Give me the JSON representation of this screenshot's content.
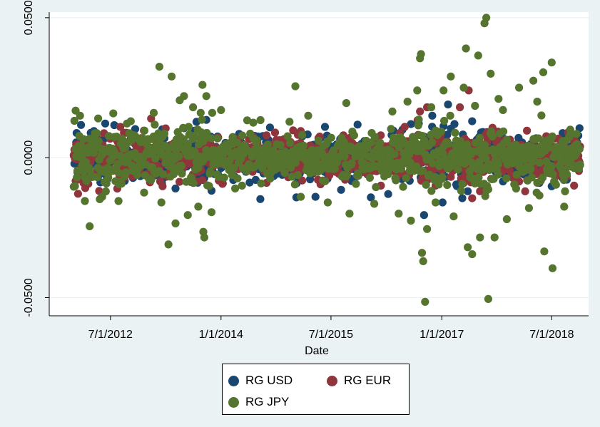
{
  "chart_data": {
    "type": "scatter",
    "xlabel": "Date",
    "ylabel": "",
    "x_range": [
      "2011-09-01",
      "2018-12-31"
    ],
    "ylim": [
      -0.0565,
      0.052
    ],
    "x_ticks": [
      {
        "date": "2012-07-01",
        "label": "7/1/2012"
      },
      {
        "date": "2014-01-01",
        "label": "1/1/2014"
      },
      {
        "date": "2015-07-01",
        "label": "7/1/2015"
      },
      {
        "date": "2017-01-01",
        "label": "1/1/2017"
      },
      {
        "date": "2018-07-01",
        "label": "7/1/2018"
      }
    ],
    "y_ticks": [
      {
        "value": 0.05,
        "label": "0.0500"
      },
      {
        "value": 0.0,
        "label": "0.0000"
      },
      {
        "value": -0.05,
        "label": "-0.0500"
      }
    ],
    "grid": "horizontal",
    "legend_position": "bottom-center",
    "series": [
      {
        "name": "RG USD",
        "color": "#1a476f",
        "points": [
          [
            "2012-01-15",
            0.0088
          ],
          [
            "2012-02-20",
            -0.0072
          ],
          [
            "2012-04-10",
            0.0095
          ],
          [
            "2012-06-05",
            0.0122
          ],
          [
            "2012-07-20",
            0.0116
          ],
          [
            "2012-09-10",
            -0.0083
          ],
          [
            "2012-11-01",
            0.0102
          ],
          [
            "2013-03-15",
            0.0101
          ],
          [
            "2013-05-20",
            -0.011
          ],
          [
            "2013-07-01",
            0.0105
          ],
          [
            "2013-09-01",
            0.0128
          ],
          [
            "2013-10-20",
            0.0135
          ],
          [
            "2013-11-15",
            -0.0118
          ],
          [
            "2014-01-10",
            -0.0092
          ],
          [
            "2014-04-01",
            0.0085
          ],
          [
            "2014-07-15",
            -0.0148
          ],
          [
            "2014-09-01",
            0.0108
          ],
          [
            "2015-01-10",
            -0.0142
          ],
          [
            "2015-04-15",
            -0.014
          ],
          [
            "2015-06-01",
            0.011
          ],
          [
            "2015-08-20",
            -0.0115
          ],
          [
            "2015-11-10",
            0.0118
          ],
          [
            "2016-01-15",
            -0.0142
          ],
          [
            "2016-04-10",
            -0.013
          ],
          [
            "2016-06-20",
            0.01
          ],
          [
            "2016-08-01",
            0.012
          ],
          [
            "2016-10-05",
            -0.0205
          ],
          [
            "2016-11-15",
            0.015
          ],
          [
            "2017-01-05",
            -0.016
          ],
          [
            "2017-02-01",
            0.019
          ],
          [
            "2017-05-10",
            -0.012
          ],
          [
            "2017-06-01",
            0.013
          ],
          [
            "2017-07-15",
            0.009
          ],
          [
            "2017-11-01",
            -0.0085
          ],
          [
            "2018-05-01",
            -0.009
          ],
          [
            "2018-09-01",
            0.008
          ]
        ]
      },
      {
        "name": "RG EUR",
        "color": "#90353b",
        "points": [
          [
            "2012-03-01",
            0.006
          ],
          [
            "2012-08-15",
            -0.0065
          ],
          [
            "2012-12-01",
            0.007
          ],
          [
            "2013-03-05",
            -0.0085
          ],
          [
            "2013-06-10",
            0.0075
          ],
          [
            "2013-10-01",
            -0.008
          ],
          [
            "2014-03-01",
            0.007
          ],
          [
            "2014-08-15",
            -0.009
          ],
          [
            "2015-02-01",
            0.0095
          ],
          [
            "2015-05-10",
            -0.0095
          ],
          [
            "2015-09-01",
            0.008
          ],
          [
            "2016-03-05",
            -0.01
          ],
          [
            "2016-07-01",
            0.011
          ],
          [
            "2016-09-15",
            0.0165
          ],
          [
            "2016-10-20",
            0.018
          ],
          [
            "2016-12-01",
            -0.01
          ],
          [
            "2017-04-01",
            0.018
          ],
          [
            "2017-05-15",
            0.024
          ],
          [
            "2017-06-01",
            -0.0145
          ],
          [
            "2017-07-10",
            -0.012
          ],
          [
            "2017-08-15",
            0.009
          ],
          [
            "2018-03-01",
            -0.008
          ],
          [
            "2018-09-20",
            0.009
          ],
          [
            "2018-10-20",
            -0.01
          ]
        ]
      },
      {
        "name": "RG JPY",
        "color": "#55752f",
        "points": [
          [
            "2012-01-10",
            0.0168
          ],
          [
            "2012-02-01",
            0.015
          ],
          [
            "2012-02-25",
            -0.0155
          ],
          [
            "2012-03-20",
            -0.0245
          ],
          [
            "2012-05-01",
            0.014
          ],
          [
            "2012-07-15",
            0.0158
          ],
          [
            "2012-08-10",
            -0.0155
          ],
          [
            "2012-10-10",
            0.013
          ],
          [
            "2012-12-15",
            -0.0125
          ],
          [
            "2013-02-01",
            0.016
          ],
          [
            "2013-03-01",
            0.0325
          ],
          [
            "2013-04-15",
            -0.031
          ],
          [
            "2013-05-01",
            0.029
          ],
          [
            "2013-05-20",
            -0.0235
          ],
          [
            "2013-06-10",
            0.0205
          ],
          [
            "2013-07-01",
            0.022
          ],
          [
            "2013-07-20",
            -0.0205
          ],
          [
            "2013-08-15",
            0.018
          ],
          [
            "2013-09-10",
            -0.0175
          ],
          [
            "2013-10-01",
            0.026
          ],
          [
            "2013-10-05",
            -0.0265
          ],
          [
            "2013-10-10",
            -0.0285
          ],
          [
            "2013-10-20",
            0.022
          ],
          [
            "2013-11-15",
            -0.0195
          ],
          [
            "2014-01-01",
            0.017
          ],
          [
            "2014-04-15",
            -0.01
          ],
          [
            "2014-06-10",
            0.0125
          ],
          [
            "2015-01-05",
            0.0255
          ],
          [
            "2015-02-01",
            -0.014
          ],
          [
            "2015-03-10",
            0.015
          ],
          [
            "2015-06-15",
            -0.016
          ],
          [
            "2015-09-15",
            0.0195
          ],
          [
            "2015-10-01",
            -0.02
          ],
          [
            "2016-02-01",
            -0.0165
          ],
          [
            "2016-05-01",
            0.0165
          ],
          [
            "2016-06-01",
            -0.02
          ],
          [
            "2016-07-15",
            0.02
          ],
          [
            "2016-08-01",
            -0.0225
          ],
          [
            "2016-09-01",
            0.024
          ],
          [
            "2016-09-15",
            0.0355
          ],
          [
            "2016-09-20",
            0.037
          ],
          [
            "2016-09-25",
            -0.034
          ],
          [
            "2016-10-01",
            -0.037
          ],
          [
            "2016-10-10",
            -0.0515
          ],
          [
            "2016-10-20",
            -0.0255
          ],
          [
            "2016-11-10",
            0.018
          ],
          [
            "2016-12-01",
            -0.016
          ],
          [
            "2017-01-10",
            0.024
          ],
          [
            "2017-02-15",
            0.029
          ],
          [
            "2017-03-01",
            -0.021
          ],
          [
            "2017-04-20",
            0.025
          ],
          [
            "2017-05-01",
            0.039
          ],
          [
            "2017-05-10",
            -0.032
          ],
          [
            "2017-06-01",
            -0.0345
          ],
          [
            "2017-06-15",
            0.0185
          ],
          [
            "2017-07-01",
            0.0365
          ],
          [
            "2017-07-10",
            -0.0285
          ],
          [
            "2017-08-01",
            0.048
          ],
          [
            "2017-08-10",
            0.05
          ],
          [
            "2017-08-20",
            -0.0505
          ],
          [
            "2017-09-01",
            0.03
          ],
          [
            "2017-09-20",
            -0.0285
          ],
          [
            "2017-10-10",
            0.021
          ],
          [
            "2017-11-01",
            0.017
          ],
          [
            "2017-11-20",
            -0.022
          ],
          [
            "2018-01-20",
            0.025
          ],
          [
            "2018-03-10",
            -0.018
          ],
          [
            "2018-04-01",
            0.0275
          ],
          [
            "2018-04-20",
            0.02
          ],
          [
            "2018-05-01",
            -0.0135
          ],
          [
            "2018-05-20",
            0.0305
          ],
          [
            "2018-05-25",
            -0.0335
          ],
          [
            "2018-07-01",
            0.034
          ],
          [
            "2018-07-05",
            -0.0395
          ],
          [
            "2018-09-01",
            -0.0175
          ],
          [
            "2018-10-01",
            0.01
          ]
        ]
      }
    ]
  }
}
